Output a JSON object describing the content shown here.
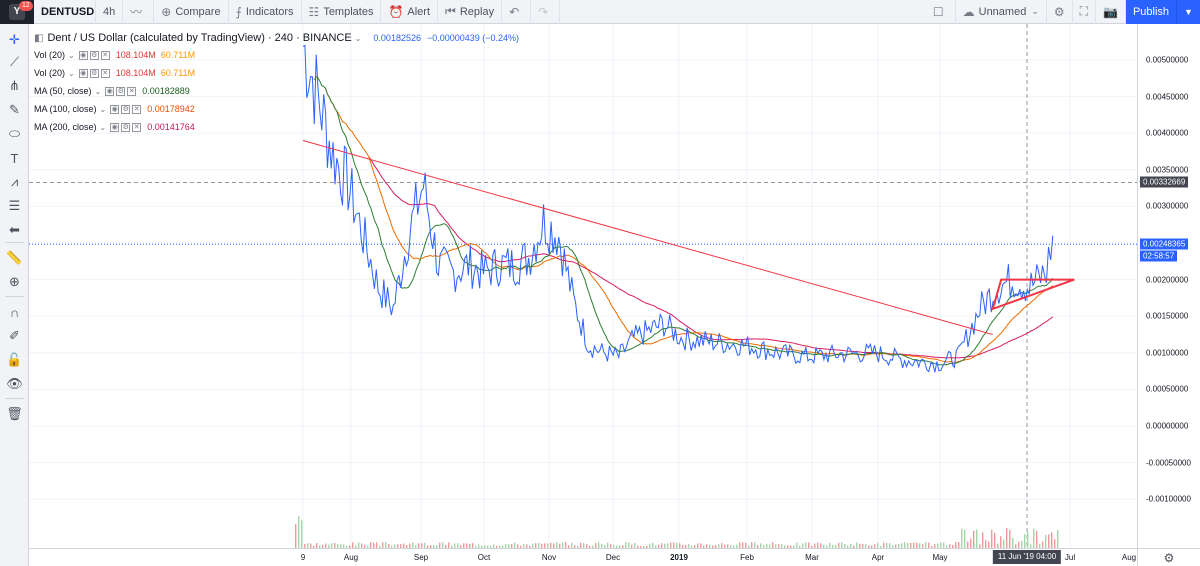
{
  "toolbar": {
    "notifications": "12",
    "symbol": "DENTUSD",
    "interval": "4h",
    "compare": "Compare",
    "indicators": "Indicators",
    "templates": "Templates",
    "alert": "Alert",
    "replay": "Replay",
    "layout_name": "Unnamed",
    "publish": "Publish"
  },
  "legend": {
    "title": "Dent / US Dollar (calculated by TradingView) · 240 · BINANCE",
    "last_price": "0.00182526",
    "change": "−0.00000439 (−0.24%)",
    "studies": [
      {
        "name": "Vol (20)",
        "v1": "108.104M",
        "v2": "60.711M",
        "c1": "#e53935",
        "c2": "#ff9800"
      },
      {
        "name": "Vol (20)",
        "v1": "108.104M",
        "v2": "60.711M",
        "c1": "#e53935",
        "c2": "#ff9800"
      },
      {
        "name": "MA (50, close)",
        "v1": "0.00182889",
        "v2": "",
        "c1": "#1b5e20",
        "c2": ""
      },
      {
        "name": "MA (100, close)",
        "v1": "0.00178942",
        "v2": "",
        "c1": "#e65100",
        "c2": ""
      },
      {
        "name": "MA (200, close)",
        "v1": "0.00141764",
        "v2": "",
        "c1": "#c2185b",
        "c2": ""
      }
    ]
  },
  "price_axis": {
    "ticks": [
      "0.00500000",
      "0.00450000",
      "0.00400000",
      "0.00350000",
      "0.00300000",
      "0.00250000",
      "0.00200000",
      "0.00150000",
      "0.00100000",
      "0.00050000",
      "0.00000000",
      "-0.00050000",
      "-0.00100000"
    ],
    "crosshair_price": "0.00332669",
    "current_price": "0.00248365",
    "countdown": "02:58:57"
  },
  "time_axis": {
    "ticks": [
      "9",
      "Aug",
      "Sep",
      "Oct",
      "Nov",
      "Dec",
      "2019",
      "Feb",
      "Mar",
      "Apr",
      "May",
      "Jul",
      "Aug"
    ],
    "cursor_label": "11 Jun '19 04:00"
  },
  "chart_data": {
    "type": "line",
    "symbol": "DENTUSD",
    "exchange": "BINANCE",
    "interval_minutes": 240,
    "x": [
      "2018-07-09",
      "2018-07-16",
      "2018-07-23",
      "2018-07-30",
      "2018-08-06",
      "2018-08-13",
      "2018-08-20",
      "2018-08-27",
      "2018-09-03",
      "2018-09-10",
      "2018-09-17",
      "2018-09-24",
      "2018-10-01",
      "2018-10-08",
      "2018-10-15",
      "2018-10-22",
      "2018-10-29",
      "2018-11-05",
      "2018-11-12",
      "2018-11-19",
      "2018-11-26",
      "2018-12-03",
      "2018-12-10",
      "2018-12-17",
      "2018-12-24",
      "2019-01-01",
      "2019-01-15",
      "2019-02-01",
      "2019-02-15",
      "2019-03-01",
      "2019-03-15",
      "2019-04-01",
      "2019-04-15",
      "2019-05-01",
      "2019-05-10",
      "2019-05-20",
      "2019-05-28",
      "2019-06-05",
      "2019-06-12",
      "2019-06-20",
      "2019-06-23"
    ],
    "series": [
      {
        "values": [
          0.0052,
          0.0045,
          0.0037,
          0.0033,
          0.0026,
          0.0019,
          0.0016,
          0.0026,
          0.0033,
          0.0022,
          0.0021,
          0.0022,
          0.0021,
          0.0022,
          0.0022,
          0.0023,
          0.0028,
          0.0026,
          0.0017,
          0.0011,
          0.001,
          0.00095,
          0.0012,
          0.0013,
          0.0014,
          0.0012,
          0.00115,
          0.0011,
          0.001,
          0.00095,
          0.00098,
          0.001,
          0.0009,
          0.00085,
          0.00095,
          0.0016,
          0.0019,
          0.002,
          0.0019,
          0.0021,
          0.0026
        ]
      }
    ],
    "annotations": [
      {
        "type": "trendline",
        "from": [
          "2018-07-09",
          0.0039
        ],
        "to": [
          "2019-05-26",
          0.00125
        ]
      },
      {
        "type": "triangle",
        "points": [
          [
            "2019-05-26",
            0.0016
          ],
          [
            "2019-05-30",
            0.002
          ],
          [
            "2019-07-03",
            0.002
          ]
        ]
      }
    ],
    "ylim": [
      -0.00115,
      0.0054
    ],
    "legend": "top-left",
    "grid": true
  }
}
